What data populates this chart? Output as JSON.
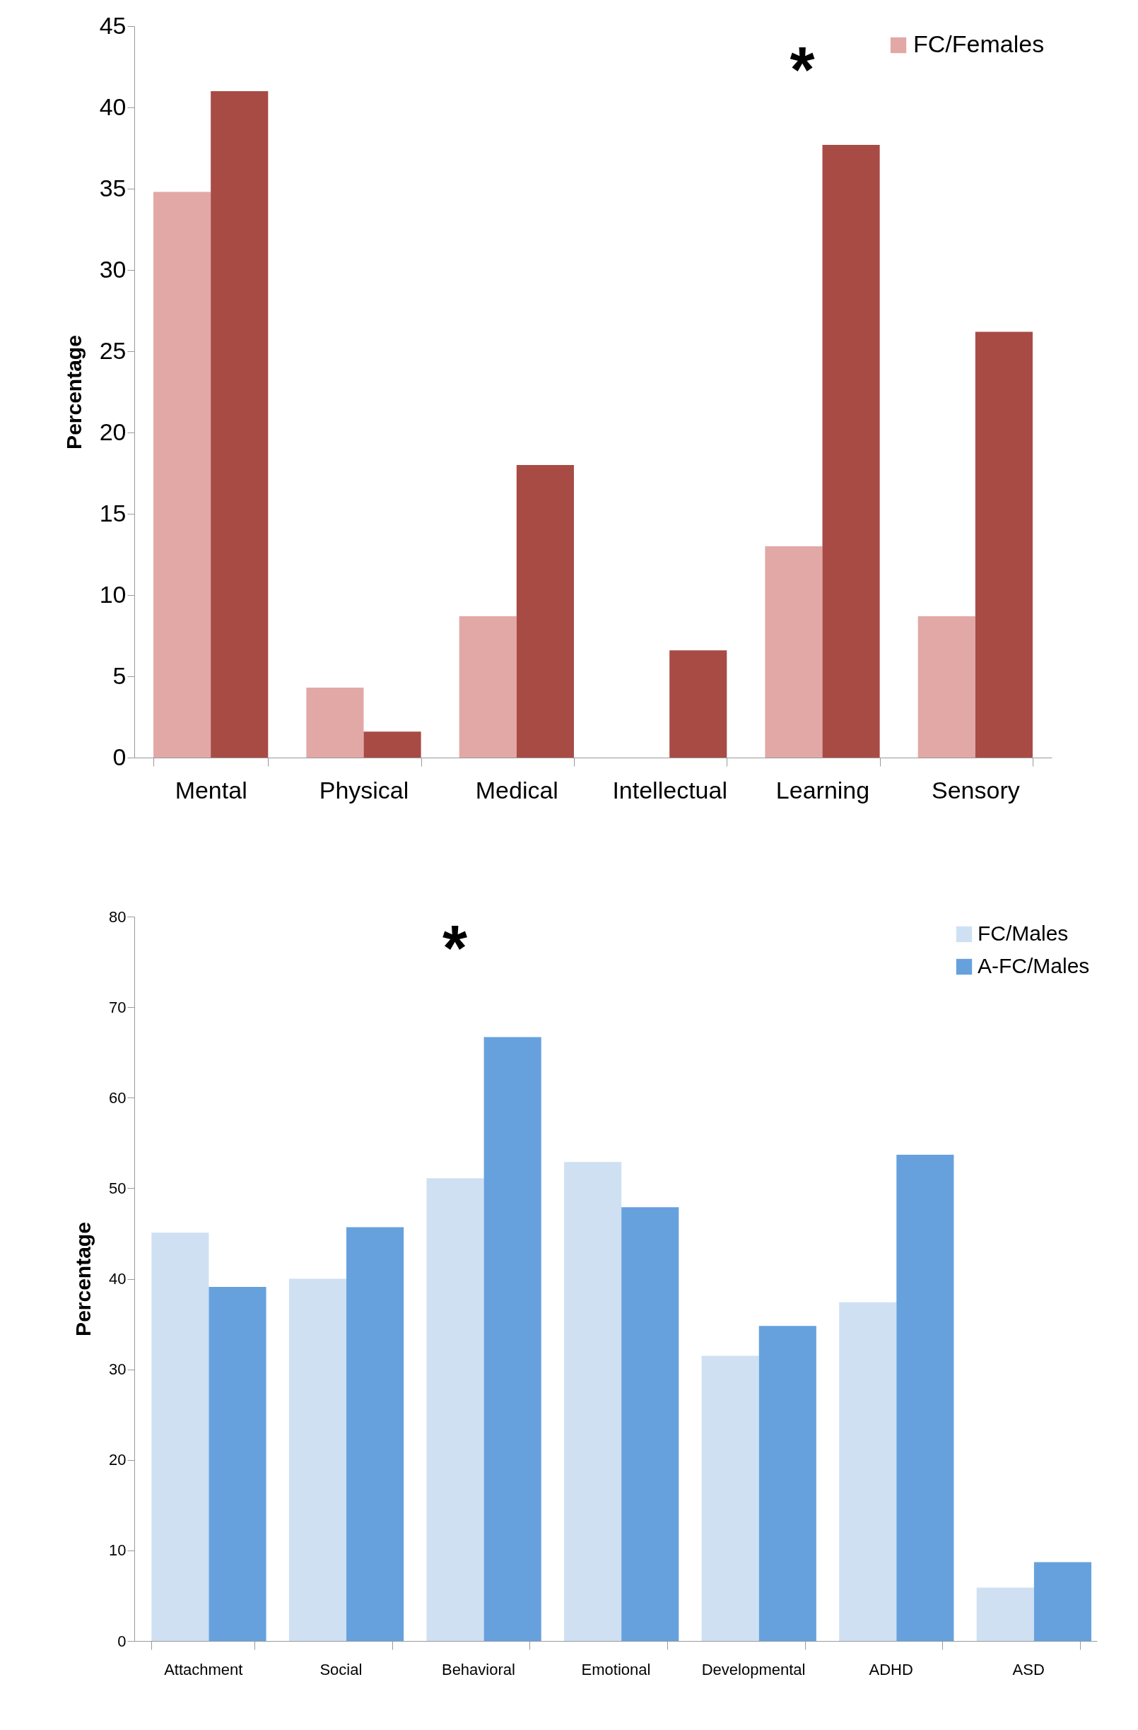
{
  "chart_data": [
    {
      "type": "bar",
      "ylabel": "Percentage",
      "categories": [
        "Mental",
        "Physical",
        "Medical",
        "Intellectual",
        "Learning",
        "Sensory"
      ],
      "series": [
        {
          "name": "FC/Females",
          "color": "#e2a8a6",
          "values": [
            34.8,
            4.3,
            8.7,
            0,
            13.0,
            8.7
          ]
        },
        {
          "color": "#a84b45",
          "values": [
            41.0,
            1.6,
            18.0,
            6.6,
            37.7,
            26.2
          ]
        }
      ],
      "ylim": [
        0,
        45
      ],
      "yticks": [
        0,
        5,
        10,
        15,
        20,
        25,
        30,
        35,
        40,
        45
      ],
      "legend": "top right",
      "annotations": [
        "*"
      ]
    },
    {
      "type": "bar",
      "ylabel": "Percentage",
      "categories": [
        "Attachment",
        "Social",
        "Behavioral",
        "Emotional",
        "Developmental",
        "ADHD",
        "ASD"
      ],
      "series": [
        {
          "name": "FC/Males",
          "color": "#cfe0f3",
          "values": [
            45.1,
            40.0,
            51.1,
            52.9,
            31.5,
            37.4,
            5.9
          ]
        },
        {
          "name": "A-FC/Males",
          "color": "#66a1dd",
          "values": [
            39.1,
            45.7,
            66.7,
            47.9,
            34.8,
            53.7,
            8.7
          ]
        }
      ],
      "ylim": [
        0,
        80
      ],
      "yticks": [
        0,
        10,
        20,
        30,
        40,
        50,
        60,
        70,
        80
      ],
      "legend": "top right",
      "annotations": [
        "*"
      ]
    }
  ]
}
